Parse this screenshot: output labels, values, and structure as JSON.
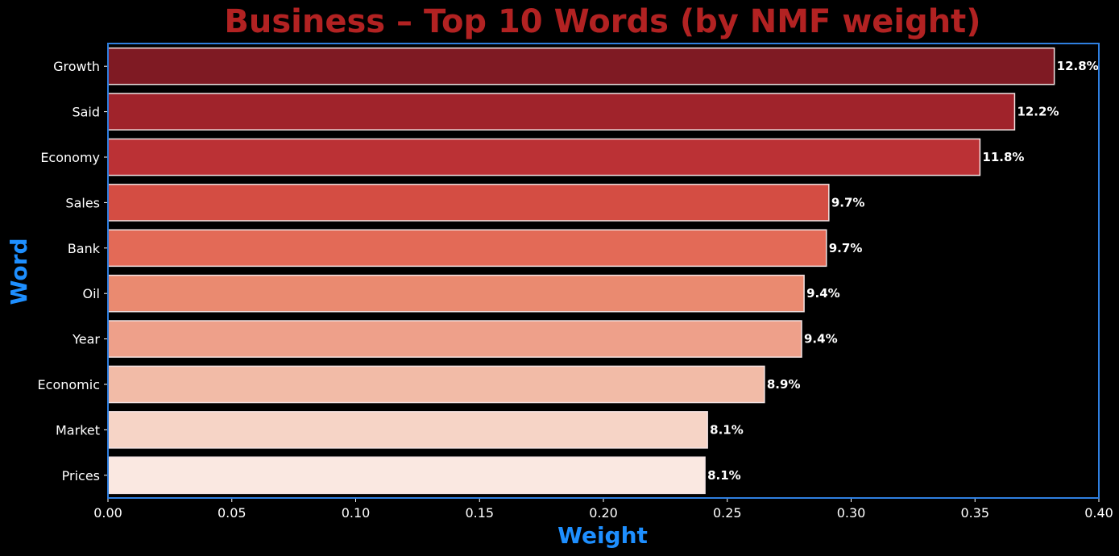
{
  "colors": {
    "background": "#000000",
    "title": "#b22222",
    "axis_label": "#1e8fff",
    "frame": "#2f7fe0",
    "bar_edge": "#f3e3e3",
    "text": "#ffffff"
  },
  "chart_data": {
    "type": "bar",
    "orientation": "horizontal",
    "title": "Business – Top 10 Words (by NMF weight)",
    "xlabel": "Weight",
    "ylabel": "Word",
    "xlim": [
      0,
      0.4
    ],
    "xticks": [
      0.0,
      0.05,
      0.1,
      0.15,
      0.2,
      0.25,
      0.3,
      0.35,
      0.4
    ],
    "xtick_labels": [
      "0.00",
      "0.05",
      "0.10",
      "0.15",
      "0.20",
      "0.25",
      "0.30",
      "0.35",
      "0.40"
    ],
    "grid": false,
    "categories": [
      "Growth",
      "Said",
      "Economy",
      "Sales",
      "Bank",
      "Oil",
      "Year",
      "Economic",
      "Market",
      "Prices"
    ],
    "values": [
      0.382,
      0.366,
      0.352,
      0.291,
      0.29,
      0.281,
      0.28,
      0.265,
      0.242,
      0.241
    ],
    "data_labels": [
      "12.8%",
      "12.2%",
      "11.8%",
      "9.7%",
      "9.7%",
      "9.4%",
      "9.4%",
      "8.9%",
      "8.1%",
      "8.1%"
    ],
    "bar_colors": [
      "#7f1a23",
      "#a0232b",
      "#bb3135",
      "#d44d43",
      "#e36a57",
      "#ea8a70",
      "#eea08a",
      "#f2bba7",
      "#f6d4c6",
      "#fae8e1"
    ]
  }
}
